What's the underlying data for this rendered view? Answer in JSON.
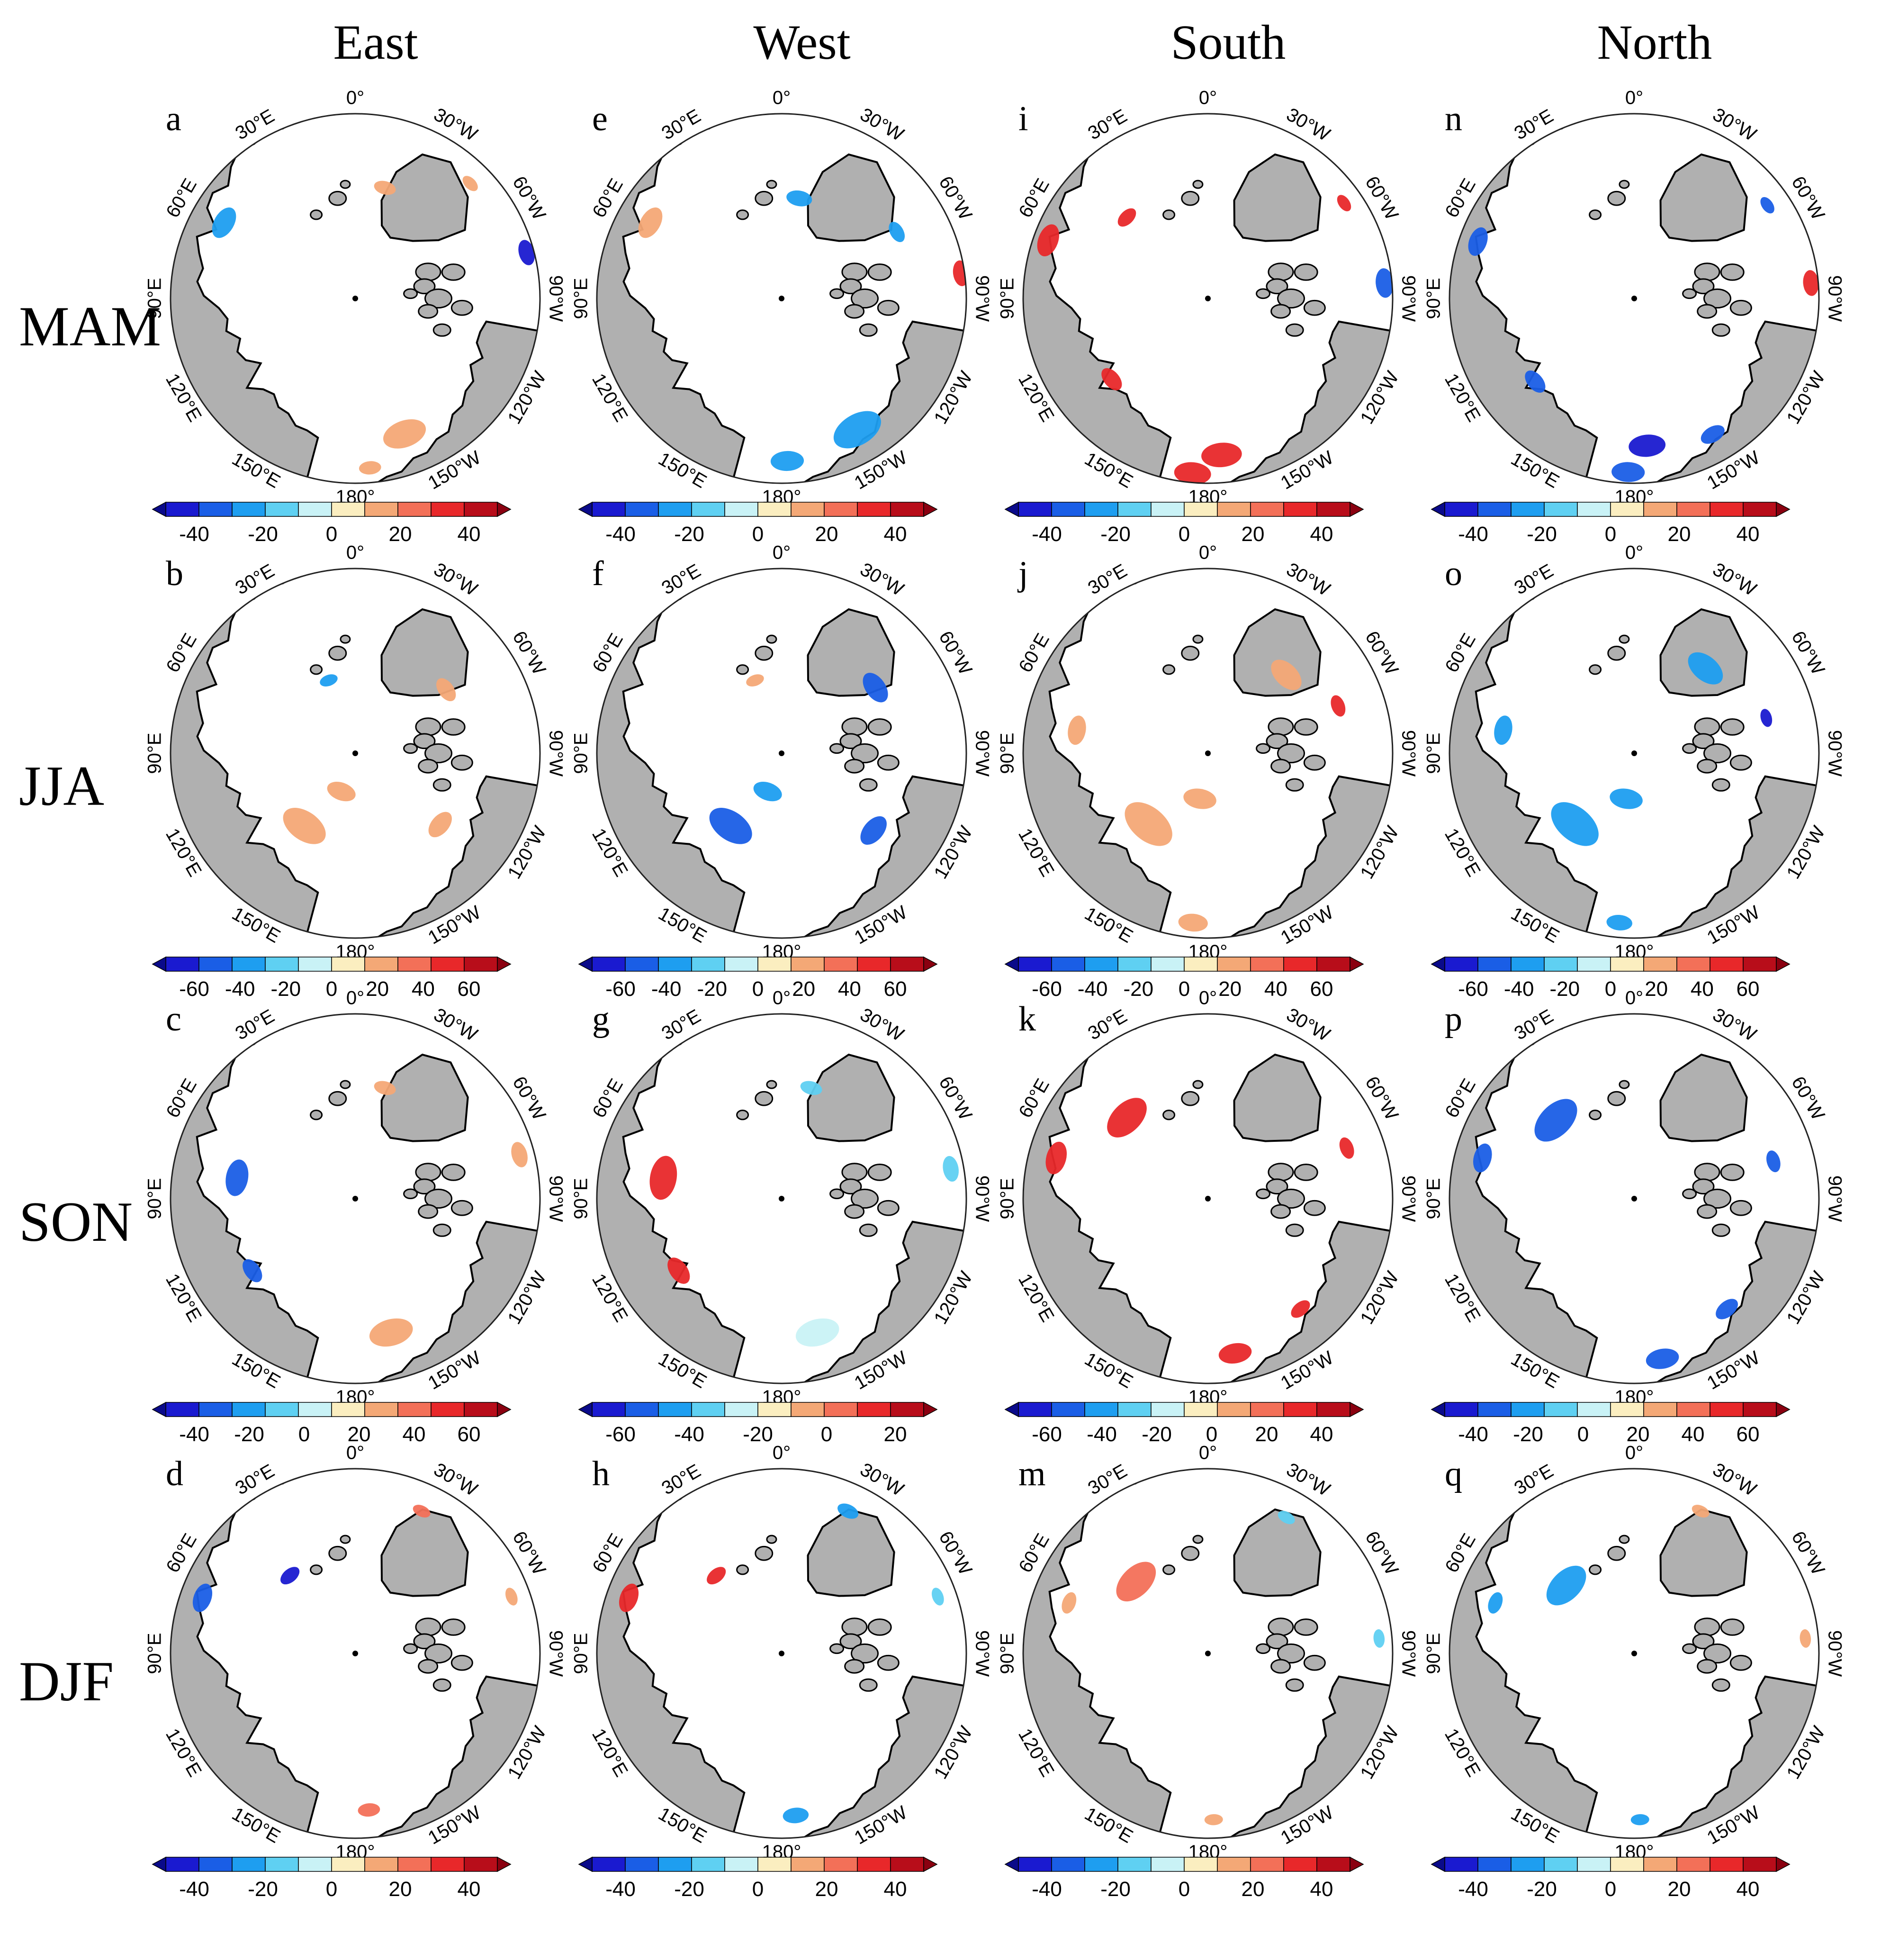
{
  "columns": [
    "East",
    "West",
    "South",
    "North"
  ],
  "rows": [
    "MAM",
    "JJA",
    "SON",
    "DJF"
  ],
  "lon_labels": {
    "top": "0°",
    "bottom": "180°",
    "ne": "30°W",
    "nw": "30°E",
    "ene": "60°W",
    "wnw": "60°E",
    "e": "90°W",
    "w": "90°E",
    "ese": "120°W",
    "wsw": "120°E",
    "se": "150°W",
    "sw": "150°E"
  },
  "palette": {
    "ocean": "#ffffff",
    "land": "#b0b0b0",
    "coast": "#000000",
    "neg": [
      "#1a1ad0",
      "#1a5ee6",
      "#1e9ef0",
      "#5fd0f2",
      "#c9f2f6"
    ],
    "pos": [
      "#fbeec0",
      "#f4a876",
      "#f37058",
      "#e8282a",
      "#b80d1a"
    ]
  },
  "panels": [
    {
      "letter": "a",
      "row": 0,
      "col": 0,
      "ticks": [
        "-40",
        "-20",
        "0",
        "20",
        "40"
      ],
      "blobs": [
        {
          "a": -60,
          "r": 0.82,
          "s": 0.09,
          "c": "#1e9ef0"
        },
        {
          "a": 15,
          "r": 0.62,
          "s": 0.06,
          "c": "#f4a876"
        },
        {
          "a": 75,
          "r": 0.96,
          "s": 0.07,
          "c": "#1a1ad0"
        },
        {
          "a": 160,
          "r": 0.78,
          "s": 0.12,
          "c": "#f4a876"
        },
        {
          "a": 175,
          "r": 0.92,
          "s": 0.06,
          "c": "#f4a876"
        },
        {
          "a": 45,
          "r": 0.88,
          "s": 0.05,
          "c": "#f4a876"
        }
      ]
    },
    {
      "letter": "e",
      "row": 0,
      "col": 1,
      "ticks": [
        "-40",
        "-20",
        "0",
        "20",
        "40"
      ],
      "blobs": [
        {
          "a": -60,
          "r": 0.82,
          "s": 0.09,
          "c": "#f4a876"
        },
        {
          "a": 10,
          "r": 0.55,
          "s": 0.07,
          "c": "#1e9ef0"
        },
        {
          "a": 60,
          "r": 0.72,
          "s": 0.06,
          "c": "#1e9ef0"
        },
        {
          "a": 82,
          "r": 0.98,
          "s": 0.07,
          "c": "#e8282a"
        },
        {
          "a": 150,
          "r": 0.82,
          "s": 0.14,
          "c": "#1e9ef0"
        },
        {
          "a": 178,
          "r": 0.88,
          "s": 0.09,
          "c": "#1e9ef0"
        }
      ]
    },
    {
      "letter": "i",
      "row": 0,
      "col": 2,
      "ticks": [
        "-40",
        "-20",
        "0",
        "20",
        "40"
      ],
      "blobs": [
        {
          "a": -70,
          "r": 0.92,
          "s": 0.09,
          "c": "#e8282a"
        },
        {
          "a": -45,
          "r": 0.62,
          "s": 0.06,
          "c": "#e8282a"
        },
        {
          "a": -130,
          "r": 0.68,
          "s": 0.07,
          "c": "#e8282a"
        },
        {
          "a": 85,
          "r": 0.96,
          "s": 0.08,
          "c": "#1a5ee6"
        },
        {
          "a": 55,
          "r": 0.9,
          "s": 0.05,
          "c": "#e8282a"
        },
        {
          "a": 175,
          "r": 0.85,
          "s": 0.11,
          "c": "#e8282a"
        },
        {
          "a": -175,
          "r": 0.95,
          "s": 0.1,
          "c": "#e8282a"
        }
      ]
    },
    {
      "letter": "n",
      "row": 0,
      "col": 3,
      "ticks": [
        "-40",
        "-20",
        "0",
        "20",
        "40"
      ],
      "blobs": [
        {
          "a": -70,
          "r": 0.9,
          "s": 0.08,
          "c": "#1a5ee6"
        },
        {
          "a": -130,
          "r": 0.7,
          "s": 0.07,
          "c": "#1a5ee6"
        },
        {
          "a": 85,
          "r": 0.96,
          "s": 0.07,
          "c": "#e8282a"
        },
        {
          "a": 55,
          "r": 0.88,
          "s": 0.05,
          "c": "#1a5ee6"
        },
        {
          "a": 150,
          "r": 0.85,
          "s": 0.07,
          "c": "#1a5ee6"
        },
        {
          "a": 175,
          "r": 0.8,
          "s": 0.1,
          "c": "#1a1ad0"
        },
        {
          "a": -178,
          "r": 0.94,
          "s": 0.09,
          "c": "#1a5ee6"
        }
      ]
    },
    {
      "letter": "b",
      "row": 1,
      "col": 0,
      "ticks": [
        "-60",
        "-40",
        "-20",
        "0",
        "20",
        "40",
        "60"
      ],
      "blobs": [
        {
          "a": -145,
          "r": 0.48,
          "s": 0.13,
          "c": "#f4a876"
        },
        {
          "a": -160,
          "r": 0.22,
          "s": 0.08,
          "c": "#f4a876"
        },
        {
          "a": 55,
          "r": 0.6,
          "s": 0.07,
          "c": "#f4a876"
        },
        {
          "a": 130,
          "r": 0.6,
          "s": 0.08,
          "c": "#f4a876"
        },
        {
          "a": -20,
          "r": 0.42,
          "s": 0.05,
          "c": "#1e9ef0"
        }
      ]
    },
    {
      "letter": "f",
      "row": 1,
      "col": 1,
      "ticks": [
        "-60",
        "-40",
        "-20",
        "0",
        "20",
        "40",
        "60"
      ],
      "blobs": [
        {
          "a": -145,
          "r": 0.48,
          "s": 0.13,
          "c": "#1a5ee6"
        },
        {
          "a": -160,
          "r": 0.22,
          "s": 0.08,
          "c": "#1e9ef0"
        },
        {
          "a": 55,
          "r": 0.62,
          "s": 0.09,
          "c": "#1a5ee6"
        },
        {
          "a": 130,
          "r": 0.65,
          "s": 0.09,
          "c": "#1a5ee6"
        },
        {
          "a": -20,
          "r": 0.42,
          "s": 0.05,
          "c": "#f4a876"
        }
      ]
    },
    {
      "letter": "j",
      "row": 1,
      "col": 2,
      "ticks": [
        "-60",
        "-40",
        "-20",
        "0",
        "20",
        "40",
        "60"
      ],
      "blobs": [
        {
          "a": -140,
          "r": 0.5,
          "s": 0.15,
          "c": "#f4a876"
        },
        {
          "a": -170,
          "r": 0.25,
          "s": 0.09,
          "c": "#f4a876"
        },
        {
          "a": -80,
          "r": 0.72,
          "s": 0.08,
          "c": "#f4a876"
        },
        {
          "a": 45,
          "r": 0.6,
          "s": 0.1,
          "c": "#f4a876"
        },
        {
          "a": 70,
          "r": 0.75,
          "s": 0.06,
          "c": "#e8282a"
        },
        {
          "a": -175,
          "r": 0.92,
          "s": 0.08,
          "c": "#f4a876"
        }
      ]
    },
    {
      "letter": "o",
      "row": 1,
      "col": 3,
      "ticks": [
        "-60",
        "-40",
        "-20",
        "0",
        "20",
        "40",
        "60"
      ],
      "blobs": [
        {
          "a": -140,
          "r": 0.5,
          "s": 0.15,
          "c": "#1e9ef0"
        },
        {
          "a": -170,
          "r": 0.25,
          "s": 0.09,
          "c": "#1e9ef0"
        },
        {
          "a": -80,
          "r": 0.72,
          "s": 0.08,
          "c": "#1e9ef0"
        },
        {
          "a": 40,
          "r": 0.6,
          "s": 0.11,
          "c": "#1e9ef0"
        },
        {
          "a": 75,
          "r": 0.74,
          "s": 0.05,
          "c": "#1a1ad0"
        },
        {
          "a": -175,
          "r": 0.92,
          "s": 0.07,
          "c": "#1e9ef0"
        }
      ]
    },
    {
      "letter": "c",
      "row": 2,
      "col": 0,
      "ticks": [
        "-40",
        "-20",
        "0",
        "20",
        "40",
        "60"
      ],
      "blobs": [
        {
          "a": -80,
          "r": 0.65,
          "s": 0.1,
          "c": "#1a5ee6"
        },
        {
          "a": -125,
          "r": 0.68,
          "s": 0.07,
          "c": "#1a5ee6"
        },
        {
          "a": 15,
          "r": 0.62,
          "s": 0.06,
          "c": "#f4a876"
        },
        {
          "a": 75,
          "r": 0.92,
          "s": 0.07,
          "c": "#f4a876"
        },
        {
          "a": 165,
          "r": 0.75,
          "s": 0.12,
          "c": "#f4a876"
        }
      ]
    },
    {
      "letter": "g",
      "row": 2,
      "col": 1,
      "ticks": [
        "-60",
        "-40",
        "-20",
        "0",
        "20"
      ],
      "blobs": [
        {
          "a": -80,
          "r": 0.65,
          "s": 0.12,
          "c": "#e8282a"
        },
        {
          "a": -125,
          "r": 0.68,
          "s": 0.08,
          "c": "#e8282a"
        },
        {
          "a": 15,
          "r": 0.62,
          "s": 0.06,
          "c": "#5fd0f2"
        },
        {
          "a": 80,
          "r": 0.93,
          "s": 0.07,
          "c": "#5fd0f2"
        },
        {
          "a": 165,
          "r": 0.75,
          "s": 0.12,
          "c": "#c9f2f6"
        }
      ]
    },
    {
      "letter": "k",
      "row": 2,
      "col": 2,
      "ticks": [
        "-60",
        "-40",
        "-20",
        "0",
        "20",
        "40"
      ],
      "blobs": [
        {
          "a": -75,
          "r": 0.85,
          "s": 0.09,
          "c": "#e8282a"
        },
        {
          "a": -45,
          "r": 0.62,
          "s": 0.13,
          "c": "#e8282a"
        },
        {
          "a": 70,
          "r": 0.8,
          "s": 0.06,
          "c": "#e8282a"
        },
        {
          "a": 140,
          "r": 0.78,
          "s": 0.06,
          "c": "#e8282a"
        },
        {
          "a": 170,
          "r": 0.85,
          "s": 0.09,
          "c": "#e8282a"
        }
      ]
    },
    {
      "letter": "p",
      "row": 2,
      "col": 3,
      "ticks": [
        "-40",
        "-20",
        "0",
        "20",
        "40",
        "60"
      ],
      "blobs": [
        {
          "a": -75,
          "r": 0.85,
          "s": 0.08,
          "c": "#1a5ee6"
        },
        {
          "a": -45,
          "r": 0.6,
          "s": 0.14,
          "c": "#1a5ee6"
        },
        {
          "a": 75,
          "r": 0.78,
          "s": 0.06,
          "c": "#1a5ee6"
        },
        {
          "a": 140,
          "r": 0.78,
          "s": 0.07,
          "c": "#1a5ee6"
        },
        {
          "a": 170,
          "r": 0.88,
          "s": 0.09,
          "c": "#1a5ee6"
        }
      ]
    },
    {
      "letter": "d",
      "row": 3,
      "col": 0,
      "ticks": [
        "-40",
        "-20",
        "0",
        "20",
        "40"
      ],
      "blobs": [
        {
          "a": -70,
          "r": 0.88,
          "s": 0.08,
          "c": "#1a5ee6"
        },
        {
          "a": -40,
          "r": 0.55,
          "s": 0.06,
          "c": "#1a1ad0"
        },
        {
          "a": 25,
          "r": 0.85,
          "s": 0.05,
          "c": "#f37058"
        },
        {
          "a": 70,
          "r": 0.9,
          "s": 0.05,
          "c": "#f4a876"
        },
        {
          "a": 175,
          "r": 0.85,
          "s": 0.06,
          "c": "#f37058"
        }
      ]
    },
    {
      "letter": "h",
      "row": 3,
      "col": 1,
      "ticks": [
        "-40",
        "-20",
        "0",
        "20",
        "40"
      ],
      "blobs": [
        {
          "a": -70,
          "r": 0.88,
          "s": 0.08,
          "c": "#e8282a"
        },
        {
          "a": -40,
          "r": 0.55,
          "s": 0.06,
          "c": "#e8282a"
        },
        {
          "a": 25,
          "r": 0.85,
          "s": 0.06,
          "c": "#1e9ef0"
        },
        {
          "a": 70,
          "r": 0.9,
          "s": 0.05,
          "c": "#5fd0f2"
        },
        {
          "a": 175,
          "r": 0.88,
          "s": 0.07,
          "c": "#1e9ef0"
        }
      ]
    },
    {
      "letter": "m",
      "row": 3,
      "col": 2,
      "ticks": [
        "-40",
        "-20",
        "0",
        "20",
        "40"
      ],
      "blobs": [
        {
          "a": -45,
          "r": 0.55,
          "s": 0.13,
          "c": "#f37058"
        },
        {
          "a": -70,
          "r": 0.8,
          "s": 0.06,
          "c": "#f4a876"
        },
        {
          "a": 30,
          "r": 0.85,
          "s": 0.05,
          "c": "#5fd0f2"
        },
        {
          "a": 85,
          "r": 0.93,
          "s": 0.05,
          "c": "#5fd0f2"
        },
        {
          "a": 178,
          "r": 0.9,
          "s": 0.05,
          "c": "#f4a876"
        }
      ]
    },
    {
      "letter": "q",
      "row": 3,
      "col": 3,
      "ticks": [
        "-40",
        "-20",
        "0",
        "20",
        "40"
      ],
      "blobs": [
        {
          "a": -45,
          "r": 0.52,
          "s": 0.13,
          "c": "#1e9ef0"
        },
        {
          "a": -70,
          "r": 0.8,
          "s": 0.06,
          "c": "#1e9ef0"
        },
        {
          "a": 25,
          "r": 0.85,
          "s": 0.05,
          "c": "#f4a876"
        },
        {
          "a": 85,
          "r": 0.93,
          "s": 0.05,
          "c": "#f4a876"
        },
        {
          "a": 178,
          "r": 0.9,
          "s": 0.05,
          "c": "#1e9ef0"
        }
      ]
    }
  ]
}
